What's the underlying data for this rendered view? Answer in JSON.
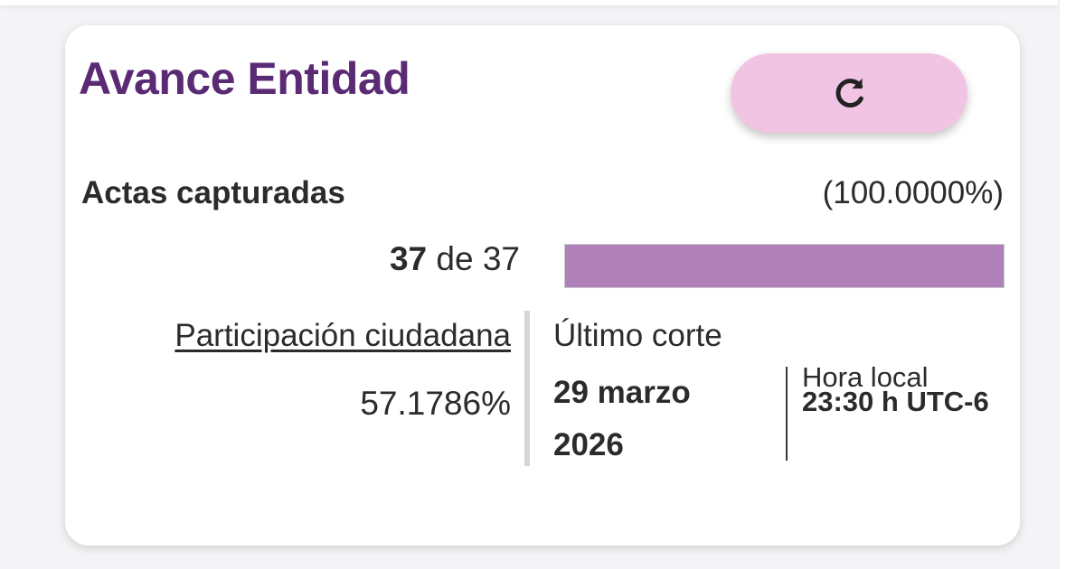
{
  "card": {
    "title": "Avance Entidad",
    "refresh_icon": "refresh-icon"
  },
  "actas": {
    "label": "Actas capturadas",
    "percentage_text": "(100.0000%)",
    "captured": "37",
    "connector": "de",
    "total": "37",
    "progress_fraction": 1.0
  },
  "participacion": {
    "link_label": "Participación ciudadana",
    "value": "57.1786%"
  },
  "corte": {
    "label": "Último corte",
    "date_day_month": "29 marzo",
    "date_year": "2026",
    "hora_label": "Hora local",
    "hora_value": "23:30 h UTC-6"
  },
  "colors": {
    "title": "#5a2a74",
    "button_bg": "#f2c4e4",
    "progress_fill": "#b080b8"
  }
}
